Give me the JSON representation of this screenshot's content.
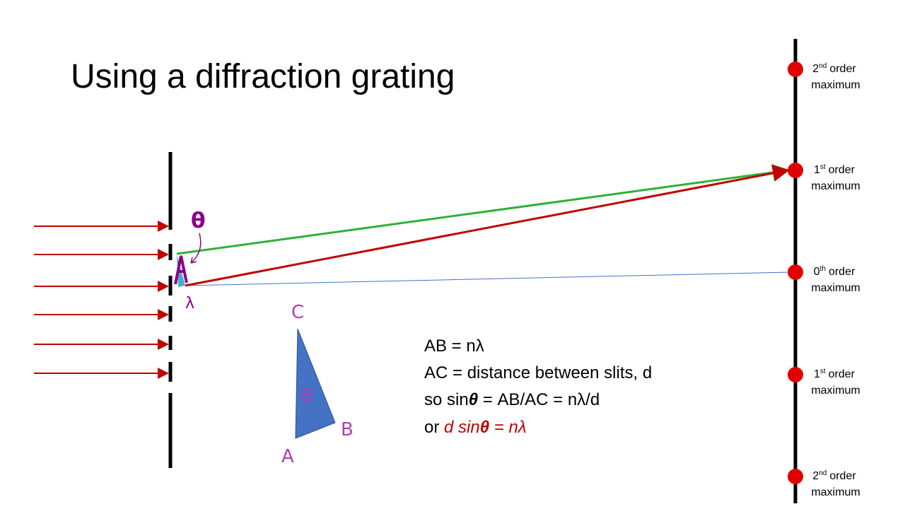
{
  "title": "Using a diffraction grating",
  "maxima": [
    {
      "number": "2",
      "suffix": "nd",
      "label": "order",
      "line2": "maximum"
    },
    {
      "number": "1",
      "suffix": "st",
      "label": "order",
      "line2": "maximum"
    },
    {
      "number": "0",
      "suffix": "th",
      "label": "order",
      "line2": "maximum"
    },
    {
      "number": "1",
      "suffix": "st",
      "label": "order",
      "line2": "maximum"
    },
    {
      "number": "2",
      "suffix": "nd",
      "label": "order",
      "line2": "maximum"
    }
  ],
  "annotations": {
    "angle": "θ",
    "wavelength": "λ",
    "point_c": "C",
    "point_a": "A",
    "point_b": "B",
    "triangle_angle": "θ"
  },
  "equations": [
    [
      "AB = nλ"
    ],
    [
      "AC = distance between slits, d"
    ],
    [
      "so sin",
      "θ",
      " = AB/AC = nλ/d"
    ],
    [
      "or ",
      "d sin",
      "θ",
      " = nλ"
    ]
  ]
}
